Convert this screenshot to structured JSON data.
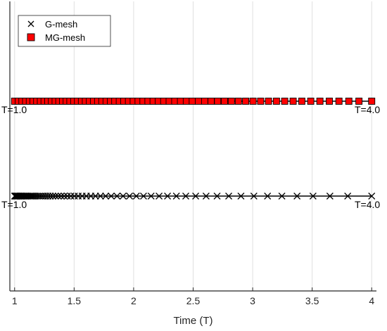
{
  "chart_data": {
    "type": "scatter",
    "xlabel": "Time (T)",
    "x_ticks": [
      1,
      1.5,
      2,
      2.5,
      3,
      3.5,
      4
    ],
    "x_tick_labels": [
      "1",
      "1.5",
      "2",
      "2.5",
      "3",
      "3.5",
      "4"
    ],
    "xlim": [
      0.96,
      4.04
    ],
    "grid": true,
    "legend": {
      "position": "top-left"
    },
    "series": [
      {
        "name": "G-mesh",
        "marker": "x",
        "color": "#000000",
        "row": "lower",
        "x": [
          1.0,
          1.0045,
          1.0093,
          1.0143,
          1.0196,
          1.0251,
          1.031,
          1.0372,
          1.0437,
          1.0505,
          1.0578,
          1.0654,
          1.0734,
          1.0819,
          1.0908,
          1.1002,
          1.1101,
          1.1206,
          1.1316,
          1.1432,
          1.1555,
          1.1684,
          1.182,
          1.1963,
          1.2114,
          1.2273,
          1.2441,
          1.2619,
          1.2806,
          1.3003,
          1.3211,
          1.343,
          1.3662,
          1.3906,
          1.4163,
          1.4434,
          1.472,
          1.5022,
          1.534,
          1.5676,
          1.603,
          1.6403,
          1.6797,
          1.7212,
          1.765,
          1.8112,
          1.8599,
          1.9113,
          1.9655,
          2.0227,
          2.083,
          2.1466,
          2.2137,
          2.2845,
          2.3592,
          2.438,
          2.5211,
          2.6088,
          2.7012,
          2.7988,
          2.9017,
          3.0103,
          3.1248,
          3.2455,
          3.3729,
          3.5073,
          3.6491,
          3.7986,
          4.0
        ]
      },
      {
        "name": "MG-mesh",
        "marker": "square",
        "color": "#ff0000",
        "row": "upper",
        "x": [
          1.0,
          1.031,
          1.062,
          1.093,
          1.124,
          1.155,
          1.186,
          1.217,
          1.248,
          1.279,
          1.31,
          1.341,
          1.372,
          1.403,
          1.434,
          1.465,
          1.497,
          1.529,
          1.562,
          1.595,
          1.629,
          1.663,
          1.698,
          1.733,
          1.769,
          1.805,
          1.842,
          1.88,
          1.918,
          1.957,
          1.997,
          2.038,
          2.079,
          2.121,
          2.164,
          2.208,
          2.253,
          2.299,
          2.346,
          2.394,
          2.443,
          2.493,
          2.544,
          2.597,
          2.651,
          2.706,
          2.763,
          2.821,
          2.88,
          2.941,
          3.003,
          3.067,
          3.133,
          3.2,
          3.269,
          3.34,
          3.413,
          3.488,
          3.565,
          3.644,
          3.725,
          3.808,
          3.893,
          4.0
        ]
      }
    ],
    "annotations": [
      {
        "text": "T=1.0",
        "row": "upper",
        "side": "left"
      },
      {
        "text": "T=4.0",
        "row": "upper",
        "side": "right"
      },
      {
        "text": "T=1.0",
        "row": "lower",
        "side": "left"
      },
      {
        "text": "T=4.0",
        "row": "lower",
        "side": "right"
      }
    ]
  }
}
